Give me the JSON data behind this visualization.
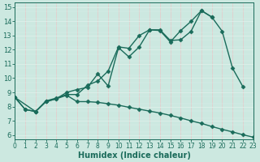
{
  "xlabel": "Humidex (Indice chaleur)",
  "xlim": [
    0,
    23
  ],
  "ylim": [
    5.7,
    15.3
  ],
  "xticks": [
    0,
    1,
    2,
    3,
    4,
    5,
    6,
    7,
    8,
    9,
    10,
    11,
    12,
    13,
    14,
    15,
    16,
    17,
    18,
    19,
    20,
    21,
    22,
    23
  ],
  "yticks": [
    6,
    7,
    8,
    9,
    10,
    11,
    12,
    13,
    14,
    15
  ],
  "bg_color": "#cce8e0",
  "line_color": "#1a6b5a",
  "grid_color_v": "#e8c8c8",
  "grid_color_h": "#dff0ea",
  "lines": [
    {
      "x": [
        0,
        1,
        2,
        3,
        4,
        5,
        6,
        7,
        8,
        9,
        10,
        11,
        12,
        13,
        14,
        15,
        16,
        17,
        18,
        19,
        20,
        21,
        22
      ],
      "y": [
        8.65,
        7.8,
        7.65,
        8.4,
        8.6,
        8.85,
        8.85,
        9.5,
        9.8,
        10.5,
        12.2,
        12.1,
        13.0,
        13.4,
        13.35,
        12.55,
        13.35,
        14.0,
        14.75,
        14.3,
        13.3,
        10.7,
        9.4
      ]
    },
    {
      "x": [
        0,
        1,
        2,
        3,
        4,
        5,
        6,
        7,
        8,
        9,
        10,
        11,
        12,
        13,
        14,
        15,
        16,
        17,
        18,
        19
      ],
      "y": [
        8.65,
        7.8,
        7.65,
        8.35,
        8.55,
        9.0,
        9.2,
        9.35,
        10.3,
        9.45,
        12.15,
        11.5,
        12.2,
        13.4,
        13.4,
        12.65,
        12.7,
        13.3,
        14.75,
        14.3
      ]
    },
    {
      "x": [
        0,
        2,
        3,
        4,
        5,
        6,
        7,
        8,
        9,
        10,
        11,
        12,
        13,
        14,
        15,
        16,
        17,
        18,
        19,
        20,
        21,
        22,
        23
      ],
      "y": [
        8.65,
        7.65,
        8.35,
        8.55,
        8.8,
        8.35,
        8.35,
        8.3,
        8.2,
        8.1,
        7.95,
        7.82,
        7.68,
        7.55,
        7.38,
        7.2,
        7.0,
        6.82,
        6.6,
        6.4,
        6.22,
        6.02,
        5.85
      ]
    }
  ],
  "marker": "D",
  "markersize": 2.5,
  "linewidth": 1.0,
  "xlabel_fontsize": 7,
  "tick_fontsize": 5.5
}
